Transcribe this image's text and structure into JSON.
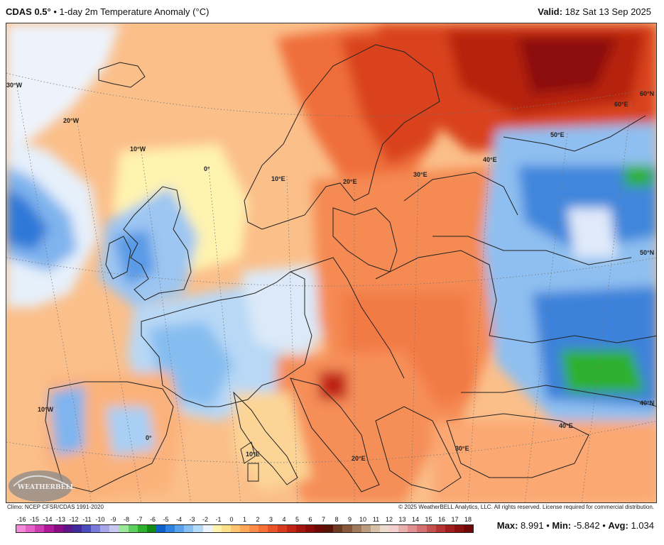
{
  "header": {
    "model": "CDAS 0.5°",
    "separator": "•",
    "product": "1-day 2m Temperature Anomaly (°C)",
    "valid_label": "Valid:",
    "valid_time": "18z Sat 13 Sep 2025"
  },
  "map": {
    "lon_labels": [
      "30°W",
      "20°W",
      "10°W",
      "0°",
      "10°E",
      "20°E",
      "30°E",
      "40°E",
      "50°E",
      "60°E",
      "10°W",
      "0°",
      "10°E",
      "20°E",
      "30°E",
      "40°E"
    ],
    "lat_labels": [
      "60°N",
      "50°N",
      "40°N"
    ],
    "logo": "WEATHERBELL"
  },
  "credits": {
    "climo": "Climo: NCEP CFSR/CDAS 1991-2020",
    "copyright": "© 2025 WeatherBELL Analytics, LLC. All rights reserved. License required for commercial distribution."
  },
  "colorbar": {
    "ticks": [
      "-16",
      "-15",
      "-14",
      "-13",
      "-12",
      "-11",
      "-10",
      "-9",
      "-8",
      "-7",
      "-6",
      "-5",
      "-4",
      "-3",
      "-2",
      "-1",
      "0",
      "1",
      "2",
      "3",
      "4",
      "5",
      "6",
      "7",
      "8",
      "9",
      "10",
      "11",
      "12",
      "13",
      "14",
      "15",
      "16",
      "17",
      "18"
    ],
    "colors": [
      "#f28ad8",
      "#e463c7",
      "#cf3cb2",
      "#b0189a",
      "#8c0c86",
      "#5f148c",
      "#402a9c",
      "#4b4bbd",
      "#7a7ad8",
      "#a6a6e8",
      "#c8c8f0",
      "#9be89b",
      "#5fd05f",
      "#2eb02e",
      "#138a13",
      "#0e5fc8",
      "#2f83e0",
      "#5aa3ec",
      "#86c0f2",
      "#b3daf8",
      "#eef4fb",
      "#fff3b0",
      "#ffe08a",
      "#ffc470",
      "#ffa85a",
      "#ff8c48",
      "#f77038",
      "#ea542a",
      "#d83a1e",
      "#c02414",
      "#a5140e",
      "#8a0c08",
      "#6e0a06",
      "#5a1206",
      "#6e3a22",
      "#86583c",
      "#a07a5c",
      "#bc9c80",
      "#d6c0a8",
      "#ecdccc",
      "#f2d0d0",
      "#eab0b0",
      "#e09090",
      "#d47070",
      "#c45050",
      "#b43434",
      "#a01e1e",
      "#8a1010",
      "#700808"
    ]
  },
  "stats": {
    "max_label": "Max:",
    "max_value": "8.991",
    "min_label": "Min:",
    "min_value": "-5.842",
    "avg_label": "Avg:",
    "avg_value": "1.034",
    "sep": "•"
  }
}
